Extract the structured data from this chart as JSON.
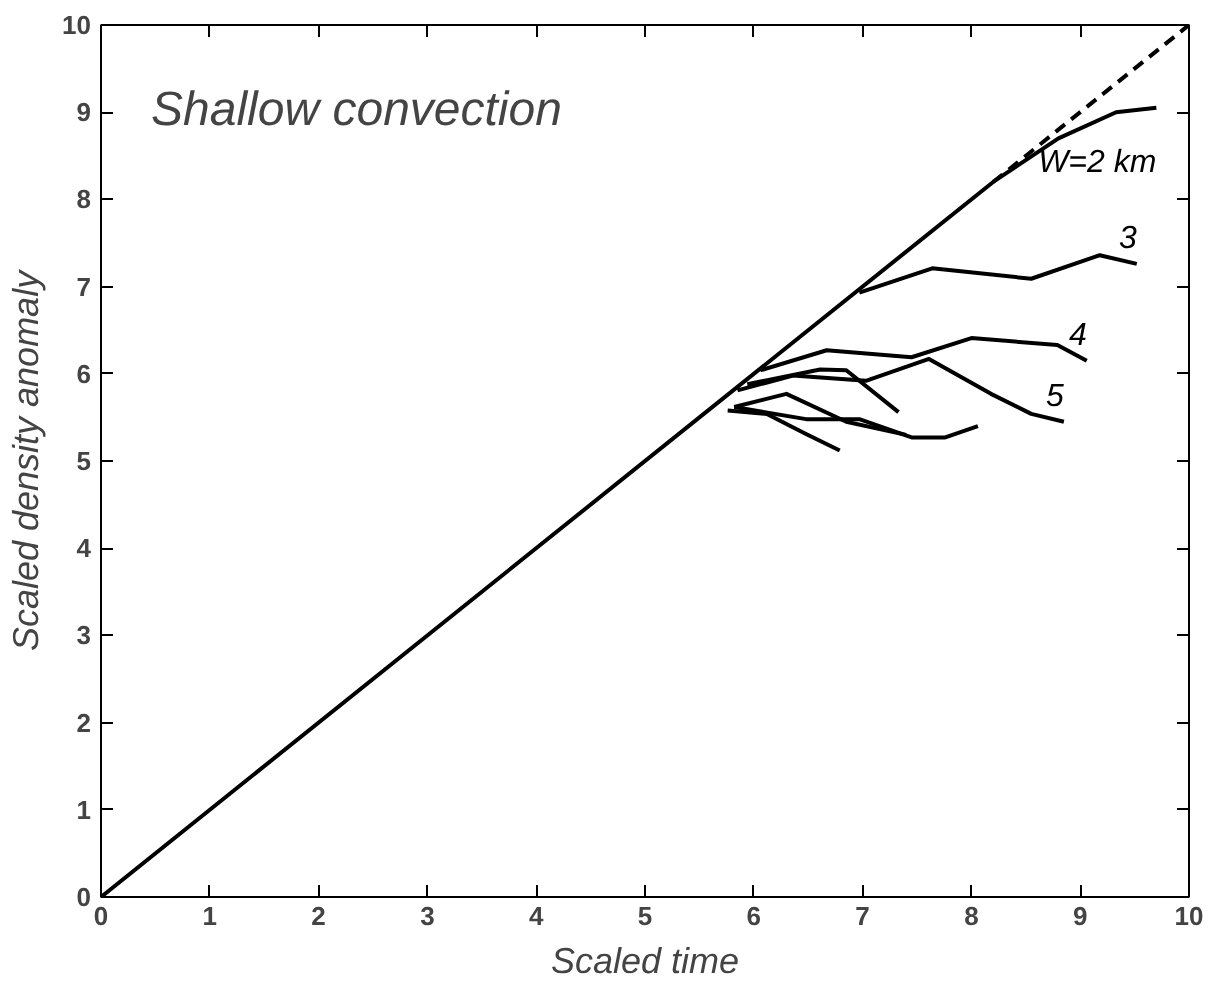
{
  "chart_data": {
    "type": "line",
    "title": "Shallow convection",
    "xlabel": "Scaled time",
    "ylabel": "Scaled density anomaly",
    "xlim": [
      0,
      10
    ],
    "ylim": [
      0,
      10
    ],
    "xticks": [
      0,
      1,
      2,
      3,
      4,
      5,
      6,
      7,
      8,
      9,
      10
    ],
    "yticks": [
      0,
      1,
      2,
      3,
      4,
      5,
      6,
      7,
      8,
      9,
      10
    ],
    "grid": false,
    "series": [
      {
        "name": "W=2 km",
        "color": "#000000",
        "x": [
          0,
          8.2,
          8.8,
          9.33,
          9.7
        ],
        "values": [
          0,
          8.2,
          8.7,
          9.0,
          9.05
        ]
      },
      {
        "color": "#000000",
        "line_style": "dashed",
        "x": [
          8.2,
          10
        ],
        "values": [
          8.2,
          10
        ]
      },
      {
        "name": "3",
        "color": "#000000",
        "x": [
          6.97,
          7.64,
          8.55,
          9.18,
          9.52
        ],
        "values": [
          6.93,
          7.21,
          7.09,
          7.36,
          7.26
        ]
      },
      {
        "name": "4",
        "color": "#000000",
        "x": [
          6.06,
          6.67,
          7.45,
          8.0,
          8.79,
          9.06
        ],
        "values": [
          6.04,
          6.27,
          6.19,
          6.41,
          6.33,
          6.15
        ]
      },
      {
        "name": "5",
        "color": "#000000",
        "x": [
          5.85,
          6.36,
          7.03,
          7.61,
          8.18,
          8.55,
          8.85
        ],
        "values": [
          5.81,
          5.98,
          5.92,
          6.17,
          5.77,
          5.54,
          5.45
        ]
      },
      {
        "color": "#000000",
        "x": [
          5.94,
          6.61,
          6.85,
          7.33
        ],
        "values": [
          5.88,
          6.05,
          6.04,
          5.56
        ]
      },
      {
        "color": "#000000",
        "x": [
          5.76,
          6.12,
          6.48,
          6.79
        ],
        "values": [
          5.58,
          5.54,
          5.31,
          5.12
        ]
      },
      {
        "color": "#000000",
        "x": [
          5.82,
          6.48,
          6.97,
          7.45,
          7.76,
          8.06
        ],
        "values": [
          5.62,
          5.48,
          5.48,
          5.27,
          5.27,
          5.4
        ]
      },
      {
        "color": "#000000",
        "x": [
          5.82,
          6.3,
          6.85,
          7.4
        ],
        "values": [
          5.62,
          5.77,
          5.45,
          5.3
        ]
      }
    ]
  }
}
